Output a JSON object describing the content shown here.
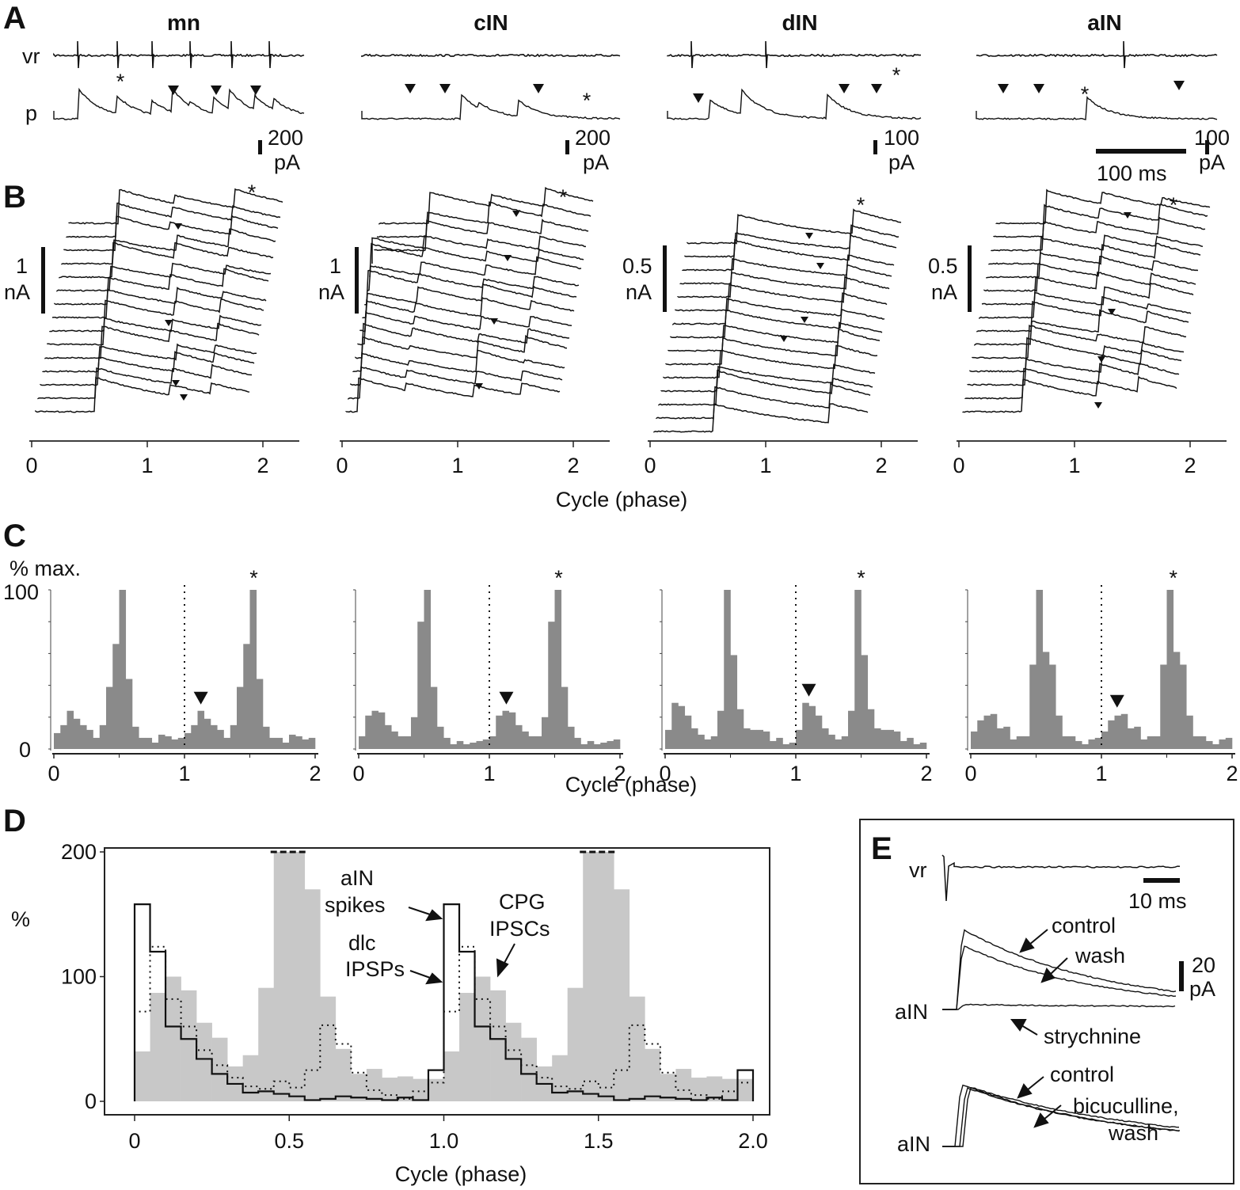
{
  "figure": {
    "panels": {
      "A": {
        "letter": "A",
        "cells": [
          {
            "name": "mn",
            "scale_value": "200",
            "scale_unit": "pA"
          },
          {
            "name": "cIN",
            "scale_value": "200",
            "scale_unit": "pA"
          },
          {
            "name": "dIN",
            "scale_value": "100",
            "scale_unit": "pA"
          },
          {
            "name": "aIN",
            "scale_value": "100",
            "scale_unit": "pA"
          }
        ],
        "row_labels": {
          "vr": "vr",
          "p": "p"
        },
        "time_scale": "100 ms",
        "asterisk": "*"
      },
      "B": {
        "letter": "B",
        "scale_bars": [
          {
            "value": "1",
            "unit": "nA"
          },
          {
            "value": "1",
            "unit": "nA"
          },
          {
            "value": "0.5",
            "unit": "nA"
          },
          {
            "value": "0.5",
            "unit": "nA"
          }
        ],
        "x_ticks": [
          "0",
          "1",
          "2"
        ],
        "xlabel": "Cycle (phase)",
        "sweeps_per_cell": 15
      },
      "C": {
        "letter": "C",
        "ylabel": "% max.",
        "y_ticks": [
          "0",
          "100"
        ],
        "x_ticks": [
          "0",
          "1",
          "2"
        ],
        "xlabel": "Cycle (phase)"
      },
      "D": {
        "letter": "D",
        "ylabel": "%",
        "y_ticks": [
          "0",
          "100",
          "200"
        ],
        "x_ticks": [
          "0",
          "0.5",
          "1.0",
          "1.5",
          "2.0"
        ],
        "xlabel": "Cycle (phase)",
        "annotations": {
          "ain_spikes_1": "aIN",
          "ain_spikes_2": "spikes",
          "dlc_1": "dlc",
          "dlc_2": "IPSPs",
          "cpg_1": "CPG",
          "cpg_2": "IPSCs"
        }
      },
      "E": {
        "letter": "E",
        "vr_label": "vr",
        "time_scale": "10 ms",
        "amp_scale_value": "20",
        "amp_scale_unit": "pA",
        "top": {
          "cell": "aIN",
          "control": "control",
          "wash": "wash",
          "drug": "strychnine"
        },
        "bottom": {
          "cell": "aIN",
          "control": "control",
          "drug_1": "bicuculline,",
          "drug_2": "wash"
        }
      }
    }
  },
  "chart_data": [
    {
      "type": "bar",
      "panel": "C",
      "title": "mn",
      "xlabel": "Cycle (phase)",
      "ylabel": "% max.",
      "xlim": [
        0,
        2
      ],
      "ylim": [
        0,
        100
      ],
      "bin_width": 0.05,
      "values": [
        10,
        15,
        24,
        19,
        15,
        12,
        7,
        15,
        39,
        66,
        100,
        44,
        14,
        7,
        7,
        4,
        9,
        8,
        6,
        7,
        10,
        15,
        24,
        19,
        15,
        12,
        7,
        15,
        39,
        66,
        100,
        44,
        14,
        7,
        7,
        4,
        9,
        8,
        6,
        7
      ],
      "markers": {
        "dotted_line_x": 1,
        "arrowhead_x": 1.125,
        "asterisk_x": 1.53
      }
    },
    {
      "type": "bar",
      "panel": "C",
      "title": "cIN",
      "xlabel": "Cycle (phase)",
      "ylabel": "% max.",
      "xlim": [
        0,
        2
      ],
      "ylim": [
        0,
        100
      ],
      "bin_width": 0.05,
      "values": [
        8,
        21,
        24,
        23,
        15,
        11,
        8,
        8,
        20,
        80,
        100,
        39,
        14,
        7,
        3,
        5,
        3,
        4,
        5,
        6,
        8,
        21,
        24,
        23,
        15,
        11,
        8,
        8,
        20,
        80,
        100,
        39,
        14,
        7,
        3,
        5,
        3,
        4,
        5,
        6
      ],
      "markers": {
        "dotted_line_x": 1,
        "arrowhead_x": 1.13,
        "asterisk_x": 1.53
      }
    },
    {
      "type": "bar",
      "panel": "C",
      "title": "dIN",
      "xlabel": "Cycle (phase)",
      "ylabel": "% max.",
      "xlim": [
        0,
        2
      ],
      "ylim": [
        0,
        100
      ],
      "bin_width": 0.05,
      "values": [
        12,
        29,
        27,
        21,
        13,
        9,
        6,
        8,
        24,
        100,
        59,
        25,
        13,
        12,
        12,
        11,
        5,
        7,
        3,
        4,
        12,
        29,
        27,
        21,
        13,
        9,
        6,
        8,
        24,
        100,
        59,
        25,
        13,
        12,
        12,
        11,
        5,
        7,
        3,
        4
      ],
      "markers": {
        "dotted_line_x": 1,
        "arrowhead_x": 1.1,
        "asterisk_x": 1.5
      }
    },
    {
      "type": "bar",
      "panel": "C",
      "title": "aIN",
      "xlabel": "Cycle (phase)",
      "ylabel": "% max.",
      "xlim": [
        0,
        2
      ],
      "ylim": [
        0,
        100
      ],
      "bin_width": 0.05,
      "values": [
        11,
        18,
        21,
        22,
        13,
        14,
        6,
        8,
        8,
        53,
        100,
        61,
        53,
        21,
        8,
        8,
        5,
        3,
        6,
        7,
        11,
        18,
        21,
        22,
        13,
        14,
        6,
        8,
        8,
        53,
        100,
        61,
        53,
        21,
        8,
        8,
        5,
        3,
        6,
        7
      ],
      "markers": {
        "dotted_line_x": 1,
        "arrowhead_x": 1.12,
        "asterisk_x": 1.55
      }
    },
    {
      "type": "bar",
      "panel": "D",
      "title": "",
      "xlabel": "Cycle (phase)",
      "ylabel": "%",
      "xlim": [
        0,
        2
      ],
      "ylim": [
        0,
        200
      ],
      "bin_width": 0.05,
      "series": [
        {
          "name": "CPG IPSCs",
          "style": "filled-gray",
          "values": [
            40,
            87,
            100,
            89,
            63,
            51,
            28,
            37,
            91,
            200,
            200,
            170,
            84,
            42,
            22,
            26,
            19,
            20,
            18,
            18,
            40,
            87,
            100,
            89,
            63,
            51,
            28,
            37,
            91,
            200,
            200,
            170,
            84,
            42,
            22,
            26,
            19,
            20,
            18,
            18
          ],
          "clipped_bins_above_200": [
            0.45,
            0.5,
            1.45,
            1.5
          ]
        },
        {
          "name": "aIN spikes",
          "style": "solid-step",
          "values": [
            158,
            120,
            60,
            50,
            34,
            22,
            14,
            7,
            8,
            6,
            4,
            1,
            2,
            4,
            3,
            2,
            1,
            3,
            1,
            25,
            158,
            120,
            60,
            50,
            34,
            22,
            14,
            7,
            8,
            6,
            4,
            1,
            2,
            4,
            3,
            2,
            1,
            3,
            1,
            25
          ]
        },
        {
          "name": "dlc IPSPs",
          "style": "dotted-step",
          "values": [
            72,
            124,
            82,
            60,
            41,
            29,
            19,
            12,
            10,
            16,
            11,
            25,
            61,
            46,
            23,
            9,
            5,
            2,
            8,
            15,
            72,
            124,
            82,
            60,
            41,
            29,
            19,
            12,
            10,
            16,
            11,
            25,
            61,
            46,
            23,
            9,
            5,
            2,
            8,
            15
          ]
        }
      ]
    }
  ]
}
